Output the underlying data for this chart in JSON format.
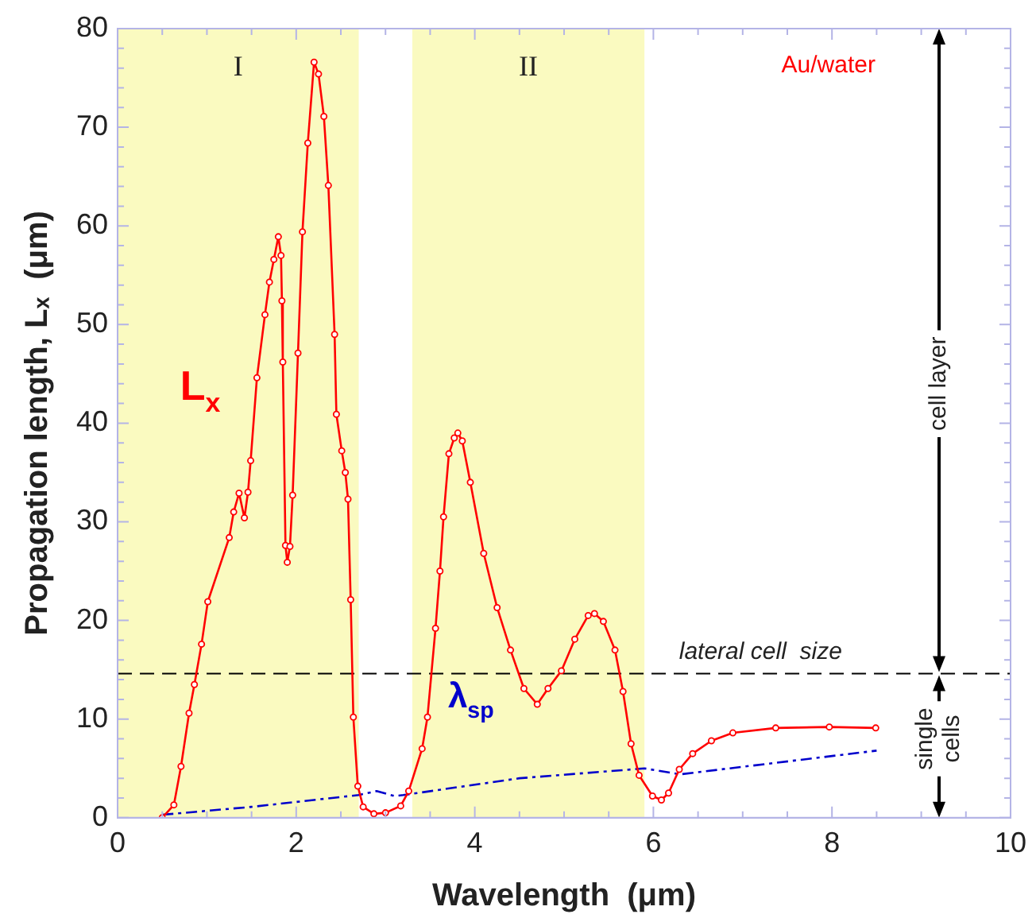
{
  "chart_data": {
    "type": "line",
    "xlabel": "Wavelength  (μm)",
    "ylabel": "Propagation length, Lₓ  (μm)",
    "xlim": [
      0,
      10
    ],
    "ylim": [
      0,
      80
    ],
    "xticks": [
      0,
      {
        "value": 0.5,
        "label": null
      },
      {
        "value": 1,
        "label": null
      },
      {
        "value": 1.5,
        "label": null
      },
      2,
      {
        "value": 2.5,
        "label": null
      },
      {
        "value": 3,
        "label": null
      },
      {
        "value": 3.5,
        "label": null
      },
      4,
      {
        "value": 4.5,
        "label": null
      },
      {
        "value": 5,
        "label": null
      },
      {
        "value": 5.5,
        "label": null
      },
      6,
      {
        "value": 6.5,
        "label": null
      },
      {
        "value": 7,
        "label": null
      },
      {
        "value": 7.5,
        "label": null
      },
      8,
      {
        "value": 8.5,
        "label": null
      },
      {
        "value": 9,
        "label": null
      },
      {
        "value": 9.5,
        "label": null
      },
      10
    ],
    "yticks": [
      0,
      {
        "value": 2,
        "label": null
      },
      {
        "value": 4,
        "label": null
      },
      {
        "value": 6,
        "label": null
      },
      {
        "value": 8,
        "label": null
      },
      10,
      {
        "value": 12,
        "label": null
      },
      {
        "value": 14,
        "label": null
      },
      {
        "value": 16,
        "label": null
      },
      {
        "value": 18,
        "label": null
      },
      20,
      {
        "value": 22,
        "label": null
      },
      {
        "value": 24,
        "label": null
      },
      {
        "value": 26,
        "label": null
      },
      {
        "value": 28,
        "label": null
      },
      30,
      {
        "value": 32,
        "label": null
      },
      {
        "value": 34,
        "label": null
      },
      {
        "value": 36,
        "label": null
      },
      {
        "value": 38,
        "label": null
      },
      40,
      {
        "value": 42,
        "label": null
      },
      {
        "value": 44,
        "label": null
      },
      {
        "value": 46,
        "label": null
      },
      {
        "value": 48,
        "label": null
      },
      50,
      {
        "value": 52,
        "label": null
      },
      {
        "value": 54,
        "label": null
      },
      {
        "value": 56,
        "label": null
      },
      {
        "value": 58,
        "label": null
      },
      60,
      {
        "value": 62,
        "label": null
      },
      {
        "value": 64,
        "label": null
      },
      {
        "value": 66,
        "label": null
      },
      {
        "value": 68,
        "label": null
      },
      70,
      {
        "value": 72,
        "label": null
      },
      {
        "value": 74,
        "label": null
      },
      {
        "value": 76,
        "label": null
      },
      {
        "value": 78,
        "label": null
      },
      80
    ],
    "grid": false,
    "legend": false,
    "series": [
      {
        "name": "L$_{x}$",
        "color": "#ff0000",
        "marker": "circle",
        "line_style": "solid",
        "x": [
          0.5,
          0.63,
          0.71,
          0.8,
          0.86,
          0.94,
          1.01,
          1.25,
          1.3,
          1.36,
          1.42,
          1.46,
          1.49,
          1.56,
          1.65,
          1.7,
          1.75,
          1.8,
          1.83,
          1.84,
          1.85,
          1.88,
          1.9,
          1.93,
          1.96,
          2.02,
          2.07,
          2.13,
          2.2,
          2.25,
          2.31,
          2.36,
          2.43,
          2.45,
          2.51,
          2.55,
          2.58,
          2.61,
          2.64,
          2.69,
          2.75,
          2.87,
          3.0,
          3.17,
          3.26,
          3.41,
          3.47,
          3.56,
          3.61,
          3.65,
          3.71,
          3.77,
          3.81,
          3.86,
          3.95,
          4.1,
          4.25,
          4.4,
          4.55,
          4.7,
          4.82,
          4.97,
          5.12,
          5.27,
          5.34,
          5.44,
          5.57,
          5.66,
          5.75,
          5.84,
          5.99,
          6.09,
          6.17,
          6.29,
          6.44,
          6.65,
          6.89,
          7.37,
          7.97,
          8.49
        ],
        "values": [
          0,
          1.3,
          5.2,
          10.6,
          13.5,
          17.6,
          21.9,
          28.4,
          31,
          32.9,
          30.4,
          33,
          36.2,
          44.6,
          51,
          54.3,
          56.6,
          58.9,
          57,
          52.4,
          46.2,
          27.6,
          25.9,
          27.5,
          32.7,
          47.1,
          59.4,
          68.4,
          76.6,
          75.4,
          71.1,
          64.1,
          49,
          40.9,
          37.2,
          35,
          32.3,
          22.1,
          10.2,
          3.2,
          1.1,
          0.4,
          0.5,
          1.2,
          2.7,
          7,
          10.2,
          19.2,
          25,
          30.5,
          36.9,
          38.5,
          39,
          38.2,
          34,
          26.8,
          21.3,
          17,
          13.1,
          11.5,
          13.1,
          14.9,
          18.1,
          20.5,
          20.7,
          19.9,
          17,
          12.8,
          7.5,
          4.3,
          2.2,
          1.8,
          2.5,
          4.9,
          6.5,
          7.8,
          8.6,
          9.1,
          9.2,
          9.1
        ]
      },
      {
        "name": "λ$_{sp}$",
        "color": "#0000cc",
        "marker": "none",
        "line_style": "dashed",
        "x": [
          0.5,
          1.5,
          2.7,
          2.9,
          3.1,
          3.2,
          4.5,
          5.9,
          6.3,
          8.5
        ],
        "values": [
          0.3,
          1.1,
          2.3,
          2.7,
          2.2,
          2.3,
          4,
          5,
          4.4,
          6.8
        ]
      }
    ],
    "ref_lines": [
      {
        "axis": "y",
        "value": 14.6,
        "label": "lateral cell  size",
        "color": "#000000",
        "line_style": "dashed"
      }
    ],
    "bands": [
      {
        "axis": "x",
        "from": 0,
        "to": 2.7,
        "label": "I",
        "color": "#fafac0"
      },
      {
        "axis": "x",
        "from": 3.3,
        "to": 5.9,
        "label": "II",
        "color": "#fafac0"
      }
    ],
    "annotations": [
      "Au/water",
      "cell layer",
      "single cells"
    ]
  }
}
